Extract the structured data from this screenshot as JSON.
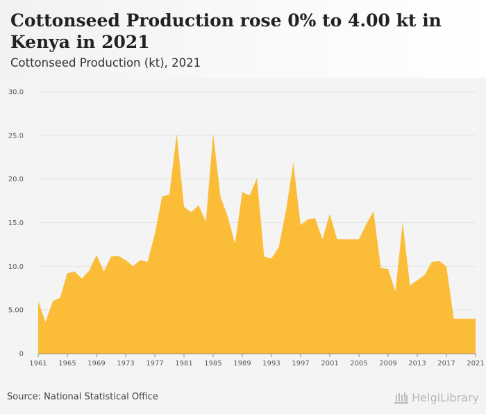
{
  "header": {
    "title": "Cottonseed Production rose 0% to 4.00 kt in Kenya in 2021",
    "subtitle": "Cottonseed Production (kt), 2021"
  },
  "footer": {
    "source": "Source: National Statistical Office",
    "logo": "HelgiLibrary"
  },
  "colors": {
    "area": "#fbbd38",
    "grid": "#e2e2e2",
    "axis": "#888888"
  },
  "chart_data": {
    "type": "area",
    "title": "Cottonseed Production rose 0% to 4.00 kt in Kenya in 2021",
    "subtitle": "Cottonseed Production (kt), 2021",
    "xlabel": "",
    "ylabel": "",
    "ylim": [
      0,
      30
    ],
    "xlim": [
      1961,
      2021
    ],
    "y_ticks": [
      0,
      5,
      10,
      15,
      20,
      25,
      30
    ],
    "y_tick_labels": [
      "0",
      "5.00",
      "10.0",
      "15.0",
      "20.0",
      "25.0",
      "30.0"
    ],
    "x_ticks": [
      1961,
      1965,
      1969,
      1973,
      1977,
      1981,
      1985,
      1989,
      1993,
      1997,
      2001,
      2005,
      2009,
      2013,
      2017,
      2021
    ],
    "grid": true,
    "legend": "none",
    "x": [
      1961,
      1962,
      1963,
      1964,
      1965,
      1966,
      1967,
      1968,
      1969,
      1970,
      1971,
      1972,
      1973,
      1974,
      1975,
      1976,
      1977,
      1978,
      1979,
      1980,
      1981,
      1982,
      1983,
      1984,
      1985,
      1986,
      1987,
      1988,
      1989,
      1990,
      1991,
      1992,
      1993,
      1994,
      1995,
      1996,
      1997,
      1998,
      1999,
      2000,
      2001,
      2002,
      2003,
      2004,
      2005,
      2006,
      2007,
      2008,
      2009,
      2010,
      2011,
      2012,
      2013,
      2014,
      2015,
      2016,
      2017,
      2018,
      2019,
      2020,
      2021
    ],
    "values": [
      6.0,
      3.6,
      6.0,
      6.4,
      9.2,
      9.4,
      8.6,
      9.5,
      11.3,
      9.4,
      11.1,
      11.2,
      10.7,
      10.0,
      10.7,
      10.5,
      13.7,
      18.0,
      18.2,
      25.2,
      16.8,
      16.2,
      17.0,
      15.1,
      25.2,
      18.0,
      15.7,
      12.6,
      18.5,
      18.1,
      20.1,
      11.1,
      10.9,
      12.2,
      16.4,
      21.9,
      14.7,
      15.4,
      15.5,
      13.1,
      16.0,
      13.1,
      13.1,
      13.1,
      13.1,
      14.8,
      16.3,
      9.8,
      9.7,
      7.1,
      15.0,
      7.8,
      8.4,
      9.0,
      10.5,
      10.6,
      10.0,
      4.0,
      4.0,
      4.0,
      4.0
    ]
  }
}
